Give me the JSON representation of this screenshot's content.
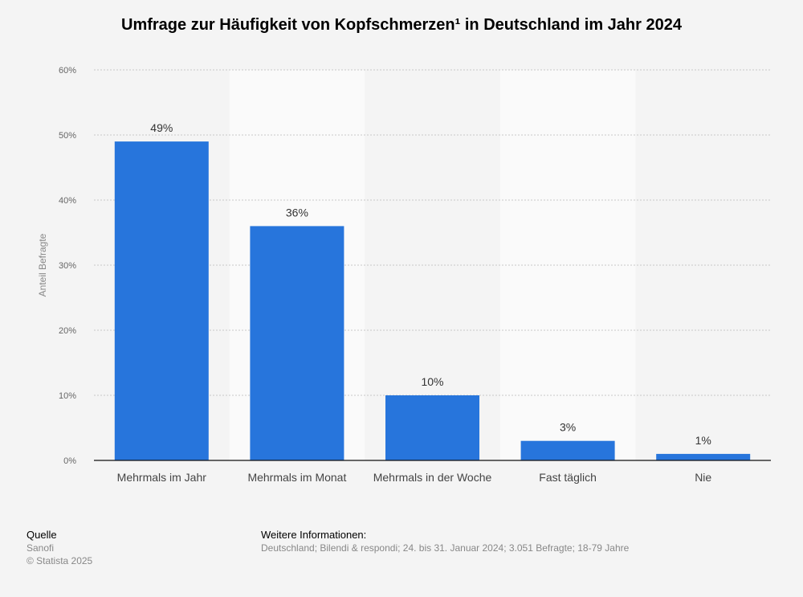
{
  "chart_data": {
    "type": "bar",
    "title": "Umfrage zur Häufigkeit von Kopfschmerzen¹ in Deutschland im Jahr 2024",
    "xlabel": "",
    "ylabel": "Anteil Befragte",
    "categories": [
      "Mehrmals im Jahr",
      "Mehrmals im Monat",
      "Mehrmals in der Woche",
      "Fast täglich",
      "Nie"
    ],
    "values": [
      49,
      36,
      10,
      3,
      1
    ],
    "data_labels": [
      "49%",
      "36%",
      "10%",
      "3%",
      "1%"
    ],
    "ylim": [
      0,
      60
    ],
    "yticks": [
      0,
      10,
      20,
      30,
      40,
      50,
      60
    ],
    "ytick_labels": [
      "0%",
      "10%",
      "20%",
      "30%",
      "40%",
      "50%",
      "60%"
    ],
    "grid": true,
    "bar_color": "#2775dc"
  },
  "footer": {
    "source_label": "Quelle",
    "source_name": "Sanofi",
    "copyright": "© Statista 2025",
    "info_label": "Weitere Informationen:",
    "info_text": "Deutschland; Bilendi & respondi; 24. bis 31. Januar 2024; 3.051 Befragte; 18-79 Jahre"
  }
}
